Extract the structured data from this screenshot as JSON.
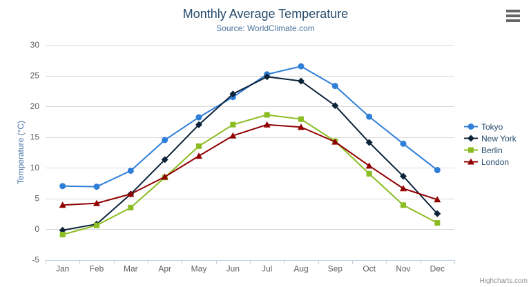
{
  "chart_data": {
    "type": "line",
    "title": "Monthly Average Temperature",
    "subtitle": "Source: WorldClimate.com",
    "xlabel": "",
    "ylabel": "Temperature (°C)",
    "ylim": [
      -5,
      30
    ],
    "yticks": [
      -5,
      0,
      5,
      10,
      15,
      20,
      25,
      30
    ],
    "grid": true,
    "legend_position": "right",
    "credits": "Highcharts.com",
    "categories": [
      "Jan",
      "Feb",
      "Mar",
      "Apr",
      "May",
      "Jun",
      "Jul",
      "Aug",
      "Sep",
      "Oct",
      "Nov",
      "Dec"
    ],
    "series": [
      {
        "name": "Tokyo",
        "color": "#2f7ed8",
        "marker": "circle",
        "values": [
          7.0,
          6.9,
          9.5,
          14.5,
          18.2,
          21.5,
          25.2,
          26.5,
          23.3,
          18.3,
          13.9,
          9.6
        ]
      },
      {
        "name": "New York",
        "color": "#0d233a",
        "marker": "diamond",
        "values": [
          -0.2,
          0.8,
          5.7,
          11.3,
          17.0,
          22.0,
          24.8,
          24.1,
          20.1,
          14.1,
          8.6,
          2.5
        ]
      },
      {
        "name": "Berlin",
        "color": "#8bbc21",
        "marker": "square",
        "values": [
          -0.9,
          0.6,
          3.5,
          8.4,
          13.5,
          17.0,
          18.6,
          17.9,
          14.3,
          9.0,
          3.9,
          1.0
        ]
      },
      {
        "name": "London",
        "color": "#910000",
        "marker": "triangle",
        "values": [
          3.9,
          4.2,
          5.7,
          8.5,
          11.9,
          15.2,
          17.0,
          16.6,
          14.2,
          10.3,
          6.6,
          4.8
        ]
      }
    ],
    "colors": {
      "title": "#274b6d",
      "subtitle": "#4d759e",
      "axis_title": "#4572a7",
      "axis_label": "#606060",
      "grid": "#d8d8d8",
      "axis_line": "#c0d0e0",
      "legend_text": "#274b6d",
      "credits": "#909090",
      "menu_icon": "#666666"
    }
  }
}
